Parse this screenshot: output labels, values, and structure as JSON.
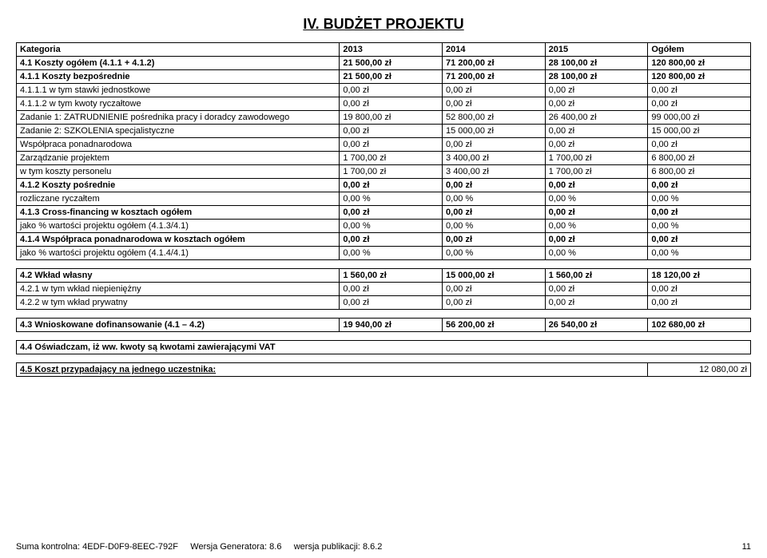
{
  "title": "IV. BUDŻET PROJEKTU",
  "columns": {
    "category": "Kategoria",
    "y2013": "2013",
    "y2014": "2014",
    "y2015": "2015",
    "total": "Ogółem"
  },
  "t1": [
    {
      "label": "4.1 Koszty ogółem (4.1.1 + 4.1.2)",
      "c": [
        "21 500,00 zł",
        "71 200,00 zł",
        "28 100,00 zł",
        "120 800,00 zł"
      ],
      "bold": true
    },
    {
      "label": "4.1.1 Koszty bezpośrednie",
      "c": [
        "21 500,00 zł",
        "71 200,00 zł",
        "28 100,00 zł",
        "120 800,00 zł"
      ],
      "bold": true
    },
    {
      "label": "4.1.1.1 w tym stawki jednostkowe",
      "c": [
        "0,00 zł",
        "0,00 zł",
        "0,00 zł",
        "0,00 zł"
      ],
      "bold": false
    },
    {
      "label": "4.1.1.2 w tym kwoty ryczałtowe",
      "c": [
        "0,00 zł",
        "0,00 zł",
        "0,00 zł",
        "0,00 zł"
      ],
      "bold": false
    },
    {
      "label": "Zadanie 1: ZATRUDNIENIE pośrednika pracy i doradcy zawodowego",
      "c": [
        "19 800,00 zł",
        "52 800,00 zł",
        "26 400,00 zł",
        "99 000,00 zł"
      ],
      "bold": false
    },
    {
      "label": "Zadanie 2: SZKOLENIA specjalistyczne",
      "c": [
        "0,00 zł",
        "15 000,00 zł",
        "0,00 zł",
        "15 000,00 zł"
      ],
      "bold": false
    },
    {
      "label": "Współpraca ponadnarodowa",
      "c": [
        "0,00 zł",
        "0,00 zł",
        "0,00 zł",
        "0,00 zł"
      ],
      "bold": false
    },
    {
      "label": "Zarządzanie projektem",
      "c": [
        "1 700,00 zł",
        "3 400,00 zł",
        "1 700,00 zł",
        "6 800,00 zł"
      ],
      "bold": false
    },
    {
      "label": "w tym koszty personelu",
      "c": [
        "1 700,00 zł",
        "3 400,00 zł",
        "1 700,00 zł",
        "6 800,00 zł"
      ],
      "bold": false
    },
    {
      "label": "4.1.2 Koszty pośrednie",
      "c": [
        "0,00 zł",
        "0,00 zł",
        "0,00 zł",
        "0,00 zł"
      ],
      "bold": true
    },
    {
      "label": "rozliczane ryczałtem",
      "c": [
        "0,00 %",
        "0,00 %",
        "0,00 %",
        "0,00 %"
      ],
      "bold": false
    },
    {
      "label": "4.1.3 Cross-financing w kosztach ogółem",
      "c": [
        "0,00 zł",
        "0,00 zł",
        "0,00 zł",
        "0,00 zł"
      ],
      "bold": true
    },
    {
      "label": "jako % wartości projektu ogółem (4.1.3/4.1)",
      "c": [
        "0,00 %",
        "0,00 %",
        "0,00 %",
        "0,00 %"
      ],
      "bold": false
    },
    {
      "label": "4.1.4 Współpraca ponadnarodowa w kosztach ogółem",
      "c": [
        "0,00 zł",
        "0,00 zł",
        "0,00 zł",
        "0,00 zł"
      ],
      "bold": true
    },
    {
      "label": "jako % wartości projektu ogółem (4.1.4/4.1)",
      "c": [
        "0,00 %",
        "0,00 %",
        "0,00 %",
        "0,00 %"
      ],
      "bold": false
    }
  ],
  "t2": [
    {
      "label": "4.2 Wkład własny",
      "c": [
        "1 560,00 zł",
        "15 000,00 zł",
        "1 560,00 zł",
        "18 120,00 zł"
      ],
      "bold": true
    },
    {
      "label": "4.2.1 w tym wkład niepieniężny",
      "c": [
        "0,00 zł",
        "0,00 zł",
        "0,00 zł",
        "0,00 zł"
      ],
      "bold": false
    },
    {
      "label": "4.2.2 w tym wkład prywatny",
      "c": [
        "0,00 zł",
        "0,00 zł",
        "0,00 zł",
        "0,00 zł"
      ],
      "bold": false
    }
  ],
  "t3": [
    {
      "label": "4.3 Wnioskowane dofinansowanie (4.1 – 4.2)",
      "c": [
        "19 940,00 zł",
        "56 200,00 zł",
        "26 540,00 zł",
        "102 680,00 zł"
      ],
      "bold": true
    }
  ],
  "t4_label": "4.4 Oświadczam, iż ww. kwoty są kwotami zawierającymi VAT",
  "t5_label": "4.5 Koszt przypadający na jednego uczestnika:",
  "t5_value": "12 080,00 zł",
  "footer": {
    "checksum_label": "Suma kontrolna:",
    "checksum": "4EDF-D0F9-8EEC-792F",
    "gen_label": "Wersja Generatora:",
    "gen": "8.6",
    "pub_label": "wersja publikacji:",
    "pub": "8.6.2",
    "page": "11"
  }
}
